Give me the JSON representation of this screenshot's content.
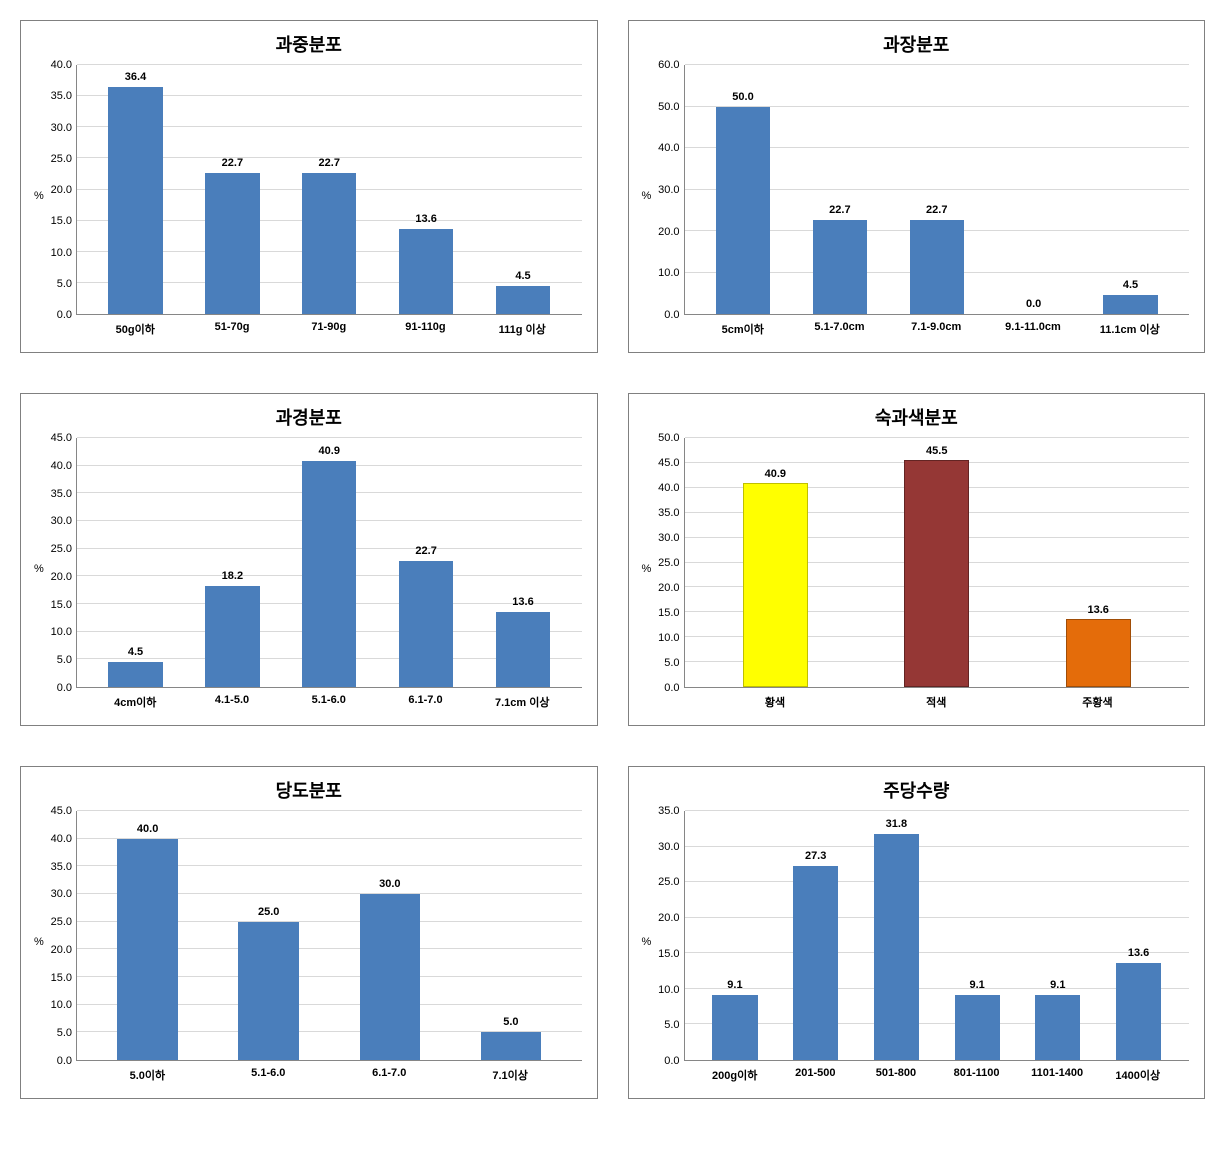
{
  "page": {
    "background_color": "#ffffff",
    "panel_border_color": "#808080",
    "grid_color": "#d9d9d9",
    "axis_color": "#868686",
    "default_bar_color": "#4a7ebb",
    "title_fontsize": 18,
    "tick_fontsize": 11,
    "label_fontsize": 11,
    "y_axis_label": "%"
  },
  "charts": [
    {
      "id": "weight-dist",
      "title": "과중분포",
      "type": "bar",
      "ylim": [
        0,
        40
      ],
      "ytick_step": 5,
      "categories": [
        "50g이하",
        "51-70g",
        "71-90g",
        "91-110g",
        "111g 이상"
      ],
      "values": [
        36.4,
        22.7,
        22.7,
        13.6,
        4.5
      ],
      "bar_colors": [
        "#4a7ebb",
        "#4a7ebb",
        "#4a7ebb",
        "#4a7ebb",
        "#4a7ebb"
      ],
      "bar_width": 0.56
    },
    {
      "id": "length-dist",
      "title": "과장분포",
      "type": "bar",
      "ylim": [
        0,
        60
      ],
      "ytick_step": 10,
      "categories": [
        "5cm이하",
        "5.1-7.0cm",
        "7.1-9.0cm",
        "9.1-11.0cm",
        "11.1cm 이상"
      ],
      "values": [
        50.0,
        22.7,
        22.7,
        0.0,
        4.5
      ],
      "bar_colors": [
        "#4a7ebb",
        "#4a7ebb",
        "#4a7ebb",
        "#4a7ebb",
        "#4a7ebb"
      ],
      "bar_width": 0.56
    },
    {
      "id": "diameter-dist",
      "title": "과경분포",
      "type": "bar",
      "ylim": [
        0,
        45
      ],
      "ytick_step": 5,
      "categories": [
        "4cm이하",
        "4.1-5.0",
        "5.1-6.0",
        "6.1-7.0",
        "7.1cm 이상"
      ],
      "values": [
        4.5,
        18.2,
        40.9,
        22.7,
        13.6
      ],
      "bar_colors": [
        "#4a7ebb",
        "#4a7ebb",
        "#4a7ebb",
        "#4a7ebb",
        "#4a7ebb"
      ],
      "bar_width": 0.56
    },
    {
      "id": "ripe-color-dist",
      "title": "숙과색분포",
      "type": "bar",
      "ylim": [
        0,
        50
      ],
      "ytick_step": 5,
      "categories": [
        "황색",
        "적색",
        "주황색"
      ],
      "values": [
        40.9,
        45.5,
        13.6
      ],
      "bar_colors": [
        "#ffff00",
        "#953735",
        "#e46c0a"
      ],
      "bar_borders": [
        "#bfbf00",
        "#632423",
        "#a04d07"
      ],
      "bar_width": 0.4
    },
    {
      "id": "sugar-dist",
      "title": "당도분포",
      "type": "bar",
      "ylim": [
        0,
        45
      ],
      "ytick_step": 5,
      "categories": [
        "5.0이하",
        "5.1-6.0",
        "6.1-7.0",
        "7.1이상"
      ],
      "values": [
        40.0,
        25.0,
        30.0,
        5.0
      ],
      "bar_colors": [
        "#4a7ebb",
        "#4a7ebb",
        "#4a7ebb",
        "#4a7ebb"
      ],
      "bar_width": 0.5
    },
    {
      "id": "yield-per-plant",
      "title": "주당수량",
      "type": "bar",
      "ylim": [
        0,
        35
      ],
      "ytick_step": 5,
      "categories": [
        "200g이하",
        "201-500",
        "501-800",
        "801-1100",
        "1101-1400",
        "1400이상"
      ],
      "values": [
        9.1,
        27.3,
        31.8,
        9.1,
        9.1,
        13.6
      ],
      "bar_colors": [
        "#4a7ebb",
        "#4a7ebb",
        "#4a7ebb",
        "#4a7ebb",
        "#4a7ebb",
        "#4a7ebb"
      ],
      "bar_width": 0.56
    }
  ]
}
